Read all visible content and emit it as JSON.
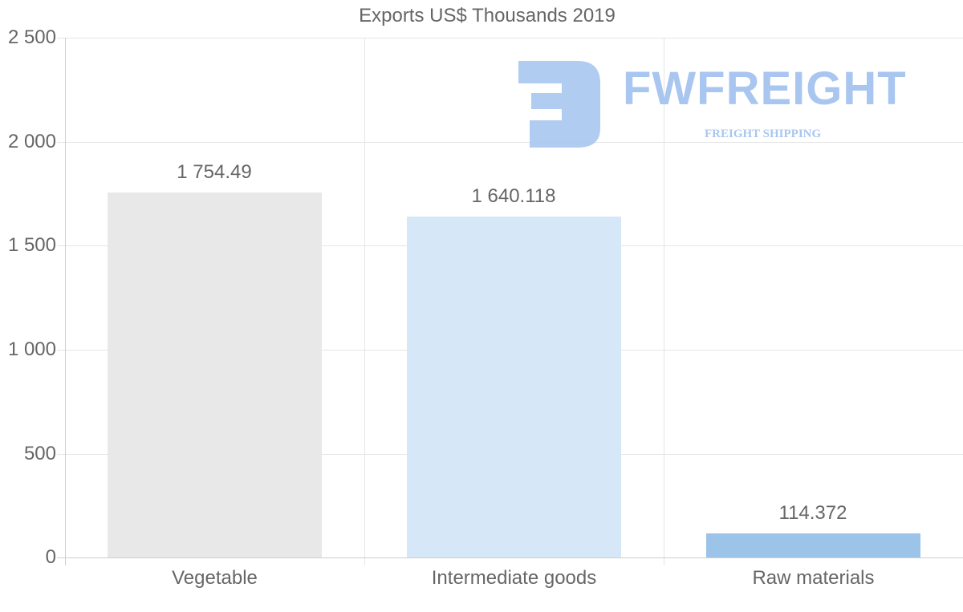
{
  "chart_data": {
    "type": "bar",
    "title": "Exports US$ Thousands 2019",
    "categories": [
      "Vegetable",
      "Intermediate goods",
      "Raw materials"
    ],
    "values": [
      1754.49,
      1640.118,
      114.372
    ],
    "value_labels": [
      "1 754.49",
      "1 640.118",
      "114.372"
    ],
    "bar_colors": [
      "#e8e8e8",
      "#d6e7f8",
      "#9bc4e8"
    ],
    "xlabel": "",
    "ylabel": "",
    "ylim": [
      0,
      2500
    ],
    "yticks": [
      0,
      500,
      1000,
      1500,
      2000,
      2500
    ],
    "ytick_labels": [
      "0",
      "500",
      "1 000",
      "1 500",
      "2 000",
      "2 500"
    ],
    "grid": true,
    "legend": "none"
  },
  "watermark": {
    "brand": "FWFREIGHT",
    "tagline": "FREIGHT SHIPPING",
    "color": "#a9c6f0"
  }
}
